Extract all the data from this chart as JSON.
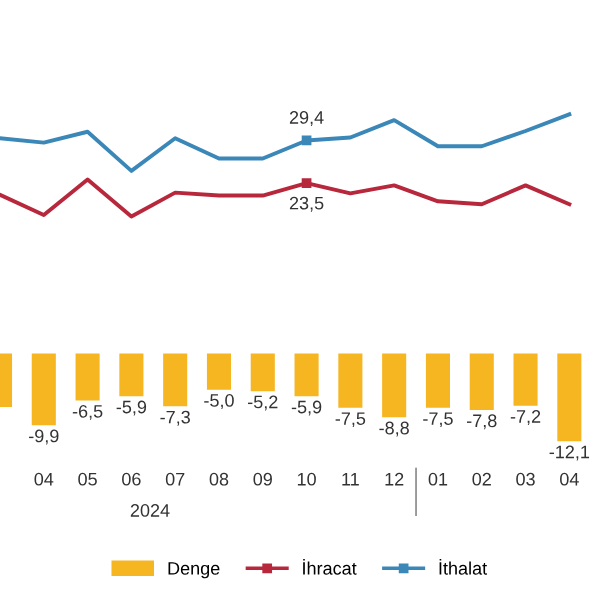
{
  "chart_data": {
    "type": "bar",
    "categories": [
      null,
      "04",
      "05",
      "06",
      "07",
      "08",
      "09",
      "10",
      "11",
      "12",
      "01",
      "02",
      "03",
      "04"
    ],
    "series": [
      {
        "name": "Denge",
        "color": "#f5b622",
        "values": [
          -7.4,
          -9.9,
          -6.5,
          -5.9,
          -7.3,
          -5.0,
          -5.2,
          -5.9,
          -7.5,
          -8.8,
          -7.5,
          -7.8,
          -7.2,
          -12.1
        ],
        "value_labels": [
          null,
          "-9,9",
          "-6,5",
          "-5,9",
          "-7,3",
          "-5,0",
          "-5,2",
          "-5,9",
          "-7,5",
          "-8,8",
          "-7,5",
          "-7,8",
          "-7,2",
          "-12,1"
        ]
      },
      {
        "name": "İhracat",
        "type": "line",
        "color": "#b8283c",
        "values": [
          21.9,
          19.1,
          24.0,
          18.9,
          22.2,
          21.8,
          21.8,
          23.5,
          22.1,
          23.2,
          21.0,
          20.6,
          23.2,
          20.6
        ],
        "value_labels": [
          null,
          null,
          null,
          null,
          null,
          null,
          null,
          "23,5",
          null,
          null,
          null,
          null,
          null,
          null
        ]
      },
      {
        "name": "İthalat",
        "type": "line",
        "color": "#3b88b8",
        "values": [
          29.7,
          29.1,
          30.6,
          25.2,
          29.7,
          26.9,
          26.9,
          29.4,
          29.8,
          32.2,
          28.6,
          28.6,
          30.7,
          33.0
        ],
        "value_labels": [
          null,
          null,
          null,
          null,
          null,
          null,
          null,
          "29,4",
          null,
          null,
          null,
          null,
          null,
          null
        ]
      }
    ],
    "annotations": [
      "2024"
    ],
    "legend": "bottom",
    "grid": false
  }
}
